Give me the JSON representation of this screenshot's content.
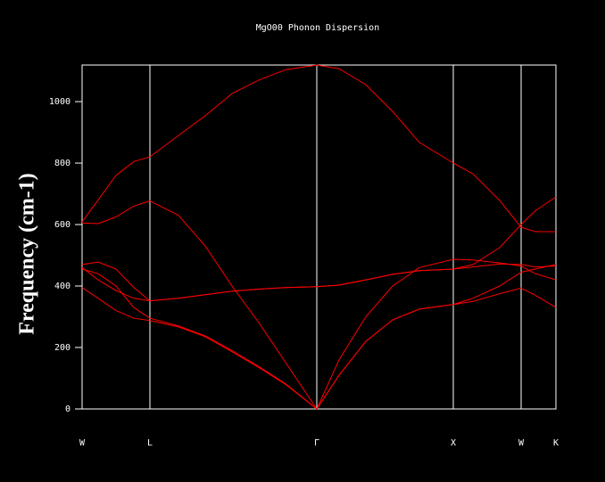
{
  "chart_data": {
    "type": "line",
    "title": "MgO00 Phonon Dispersion",
    "y_label": "Frequency (cm-1)",
    "x": [
      0,
      18,
      38,
      58,
      76,
      108,
      138,
      168,
      198,
      228,
      263,
      288,
      318,
      348,
      378,
      416,
      438,
      468,
      492,
      508,
      531
    ],
    "xlim": [
      0,
      531
    ],
    "xticks": [
      {
        "value": 0,
        "label": "W"
      },
      {
        "value": 76,
        "label": "L"
      },
      {
        "value": 263,
        "label": "Γ"
      },
      {
        "value": 416,
        "label": "X"
      },
      {
        "value": 492,
        "label": "W"
      },
      {
        "value": 531,
        "label": "K"
      }
    ],
    "ylim": [
      0,
      1119
    ],
    "yticks": [
      0,
      200,
      400,
      600,
      800,
      1000
    ],
    "series": [
      {
        "color": "#ff0000",
        "values": [
          609,
          680,
          760,
          805,
          820,
          890,
          954,
          1026,
          1070,
          1104,
          1119,
          1107,
          1055,
          968,
          867,
          800,
          765,
          678,
          591,
          577,
          577
        ]
      },
      {
        "color": "#ff0000",
        "values": [
          605,
          603,
          625,
          660,
          677,
          630,
          530,
          400,
          281,
          151,
          0,
          160,
          300,
          400,
          460,
          487,
          485,
          475,
          465,
          440,
          420
        ]
      },
      {
        "color": "#ff0000",
        "values": [
          460,
          420,
          385,
          360,
          352,
          360,
          372,
          383,
          390,
          395,
          398,
          403,
          420,
          438,
          450,
          455,
          470,
          525,
          600,
          645,
          690
        ]
      },
      {
        "color": "#ff0000",
        "values": [
          470,
          478,
          455,
          395,
          352,
          360,
          372,
          383,
          390,
          395,
          398,
          403,
          420,
          438,
          450,
          455,
          462,
          472,
          470,
          462,
          465
        ]
      },
      {
        "color": "#ff0000",
        "values": [
          395,
          360,
          320,
          295,
          288,
          267,
          235,
          186,
          135,
          80,
          0,
          110,
          220,
          290,
          325,
          340,
          350,
          375,
          393,
          370,
          330
        ]
      },
      {
        "color": "#ff0000",
        "values": [
          455,
          440,
          400,
          330,
          295,
          270,
          238,
          190,
          138,
          82,
          0,
          110,
          220,
          290,
          325,
          340,
          360,
          400,
          445,
          455,
          470
        ]
      }
    ]
  }
}
